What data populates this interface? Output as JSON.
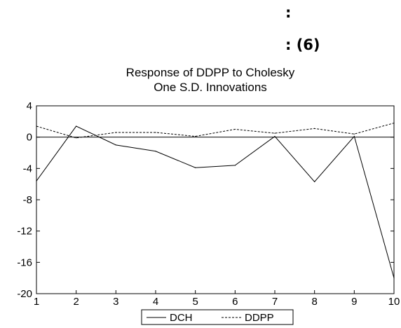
{
  "captions": {
    "line1": ":",
    "line2": ": (6)"
  },
  "chart_data": {
    "type": "line",
    "title": "Response of DDPP to Cholesky",
    "subtitle": "One S.D. Innovations",
    "x": [
      1,
      2,
      3,
      4,
      5,
      6,
      7,
      8,
      9,
      10
    ],
    "xlim": [
      1,
      10
    ],
    "ylim": [
      -20,
      4
    ],
    "yticks": [
      4,
      0,
      -4,
      -8,
      -12,
      -16,
      -20
    ],
    "xticks": [
      1,
      2,
      3,
      4,
      5,
      6,
      7,
      8,
      9,
      10
    ],
    "zero_line": true,
    "grid": false,
    "legend_position": "bottom",
    "series": [
      {
        "name": "DCH",
        "style": "solid",
        "color": "#000000",
        "values": [
          -5.6,
          1.4,
          -1.0,
          -1.8,
          -3.9,
          -3.6,
          0.1,
          -5.7,
          0.1,
          -18.0
        ]
      },
      {
        "name": "DDPP",
        "style": "dashed",
        "color": "#000000",
        "values": [
          1.4,
          -0.1,
          0.6,
          0.6,
          0.1,
          1.0,
          0.5,
          1.1,
          0.4,
          1.8
        ]
      }
    ]
  }
}
